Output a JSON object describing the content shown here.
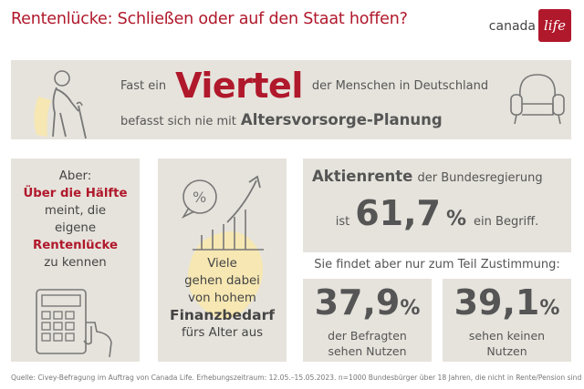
{
  "header": {
    "title": "Rentenlücke: Schließen oder auf den Staat hoffen?",
    "logo_canada": "canada",
    "logo_life": "life"
  },
  "top": {
    "pre": "Fast ein",
    "big": "Viertel",
    "post": "der Menschen in Deutschland",
    "line2_pre": "befasst sich nie mit",
    "line2_bold": "Altersvorsorge-Planung"
  },
  "left_box": {
    "l1": "Aber:",
    "l2": "Über die Hälfte",
    "l3": "meint, die",
    "l4": "eigene",
    "l5": "Rentenlücke",
    "l6": "zu kennen"
  },
  "mid_box": {
    "l1": "Viele",
    "l2": "gehen dabei",
    "l3": "von hohem",
    "l4": "Finanzbedarf",
    "l5": "fürs Alter aus"
  },
  "right_top": {
    "bold": "Aktienrente",
    "rest": "der Bundesregierung",
    "pre": "ist",
    "num": "61,7",
    "pct": "%",
    "post": "ein Begriff."
  },
  "right_sub": "Sie findet aber nur zum Teil Zustimmung:",
  "stat_a": {
    "num": "37,9",
    "pct": "%",
    "l1": "der Befragten",
    "l2": "sehen Nutzen"
  },
  "stat_b": {
    "num": "39,1",
    "pct": "%",
    "l1": "sehen keinen",
    "l2": "Nutzen"
  },
  "source": "Quelle: Civey-Befragung im Auftrag von Canada Life. Erhebungszeitraum: 12.05.–15.05.2023. n=1000 Bundesbürger über 18 Jahren, die nicht in Rente/Pension sind",
  "colors": {
    "accent": "#b0182b",
    "panel": "#e6e3dc",
    "yellow": "#f6e7b3"
  }
}
